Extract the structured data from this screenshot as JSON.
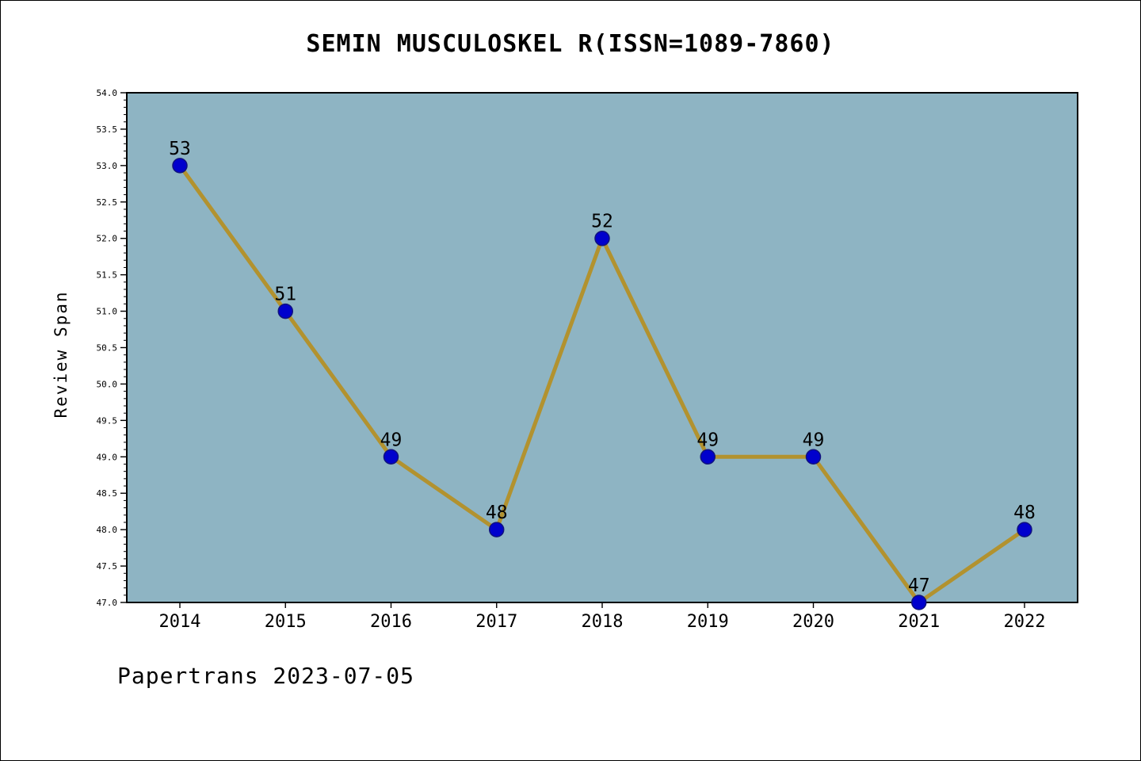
{
  "window": {
    "background": "#ffffff",
    "border_color": "#000000"
  },
  "chart_data": {
    "type": "line",
    "title": "SEMIN MUSCULOSKEL R(ISSN=1089-7860)",
    "xlabel": "",
    "ylabel": "Review Span",
    "categories": [
      "2014",
      "2015",
      "2016",
      "2017",
      "2018",
      "2019",
      "2020",
      "2021",
      "2022"
    ],
    "values": [
      53,
      51,
      49,
      48,
      52,
      49,
      49,
      47,
      48
    ],
    "point_labels": [
      "53",
      "51",
      "49",
      "48",
      "52",
      "49",
      "49",
      "47",
      "48"
    ],
    "ylim": [
      47.0,
      54.0
    ],
    "ytick_step": 0.5,
    "y_minor_step": 0.1,
    "ytick_labels": [
      "47.0",
      "47.5",
      "48.0",
      "48.5",
      "49.0",
      "49.5",
      "50.0",
      "50.5",
      "51.0",
      "51.5",
      "52.0",
      "52.5",
      "53.0",
      "53.5",
      "54.0"
    ],
    "grid": false,
    "legend": "none",
    "plot_bg": "#8eb4c3",
    "line_color": "#b2922f",
    "marker_color": "#0000cd",
    "marker_edge": "#10127e",
    "axis_color": "#000000"
  },
  "footer": {
    "text": "Papertrans 2023-07-05"
  }
}
